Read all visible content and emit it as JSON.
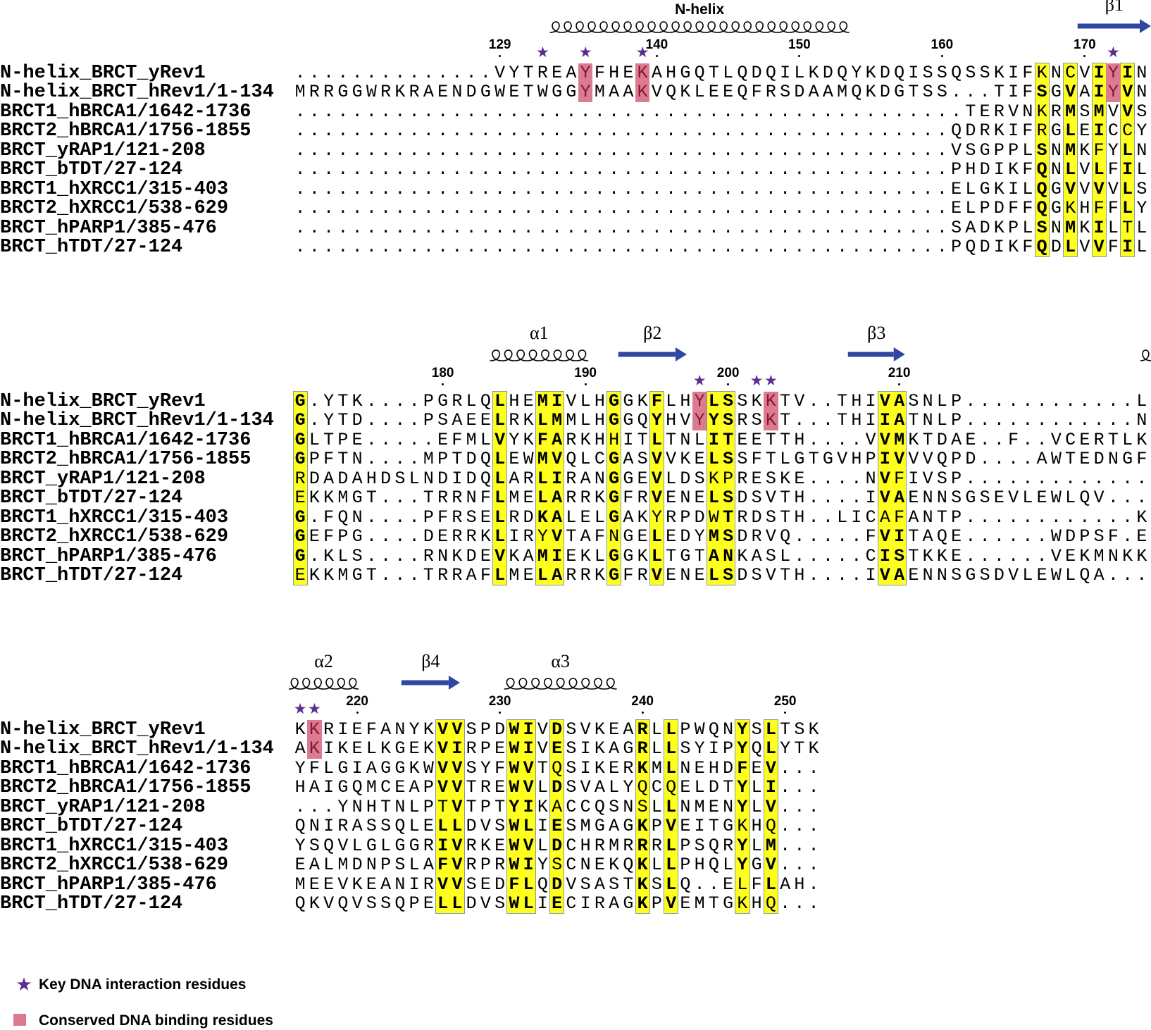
{
  "colors": {
    "conserved_column": "#ffff1e",
    "dna_binding": "#da7b90",
    "dna_binding_text": "#8b1538",
    "key_star": "#5b2d91",
    "strand_arrow": "#2f47a3"
  },
  "names": [
    "N-helix_BRCT_yRev1",
    "N-helix_BRCT_hRev1/1-134",
    "BRCT1_hBRCA1/1642-1736",
    "BRCT2_hBRCA1/1756-1855",
    "BRCT_yRAP1/121-208",
    "BRCT_bTDT/27-124",
    "BRCT1_hXRCC1/315-403",
    "BRCT2_hXRCC1/538-629",
    "BRCT_hPARP1/385-476",
    "BRCT_hTDT/27-124"
  ],
  "blocks": [
    {
      "rows": [
        "..............VYTREAYFHEKAHGQTLQDQILKDQYKDQISSQSSKIFKNCVIYIN",
        "MRRGGWRKRAENDGWETWGGYMAAKVQKLEEQFRSDAAMQKDGTSS...TIFSGVAIYVN",
        "...............................................TERVNKRMSMVVS",
        "..............................................QDRKIFRGLEICCY",
        "..............................................VSGPPLSNMKFYLN",
        "..............................................PHDIKFQNLVLFIL",
        "..............................................ELGKILQGVVVVLS",
        "..............................................ELPDFFQGKHFFLY",
        "..............................................SADKPLSNMKILTL",
        "..............................................PQDIKFQDLVVFIL"
      ],
      "conserved_columns": [
        53,
        55,
        57,
        59
      ],
      "plain_in_conserved": [
        [
          0,
          53
        ],
        [
          0,
          55
        ],
        [
          2,
          53
        ],
        [
          3,
          53
        ],
        [
          3,
          59
        ],
        [
          4,
          57
        ],
        [
          7,
          55
        ],
        [
          7,
          57
        ],
        [
          8,
          59
        ]
      ],
      "dna_binding": [
        {
          "col": 21,
          "rows": [
            0,
            1
          ]
        },
        {
          "col": 25,
          "rows": [
            0,
            1
          ]
        },
        {
          "col": 58,
          "rows": [
            0,
            1
          ]
        }
      ],
      "key_residue_cols": [
        18,
        21,
        25,
        58
      ],
      "ticks": [
        {
          "label": "129",
          "col": 15
        },
        {
          "label": "140",
          "col": 26
        },
        {
          "label": "150",
          "col": 36
        },
        {
          "label": "160",
          "col": 46
        },
        {
          "label": "170",
          "col": 56
        }
      ],
      "secondary_structure": [
        {
          "type": "helix",
          "label": "N-helix",
          "start": 19,
          "end": 40
        },
        {
          "type": "strand",
          "label": "β1",
          "start": 56,
          "end": 61.2
        }
      ]
    },
    {
      "rows": [
        "G.YTK....PGRLQLHEMIVLHGGKFLHYLSSKKTV..THIVASNLP............L",
        "G.YTD....PSAEELRKLMMLHGGQYHVYYSRSKT...THIIATNLP............N",
        "GLTPE.....EFMLVYKFARKHHITLTNLITEETTH....VVMKTDAE..F..VCERTLK",
        "GPFTN....MPTDQLEWMVQLCGASVVKELSSFTLGTGVHPIVVVQPD....AWTEDNGF",
        "RDADAHDSLNDIDQLARLIRANGGEVLDSKPRESKE....NVFIVSP.............",
        "EKKMGT...TRRNFLMELARRKGFRVENELSDSVTH....IVAENNSGSEVLEWLQV...",
        "G.FQN....PFRSELRDKALELGAKYRPDWTRDSTH..LICAFANTP............K",
        "GEFPG....DERRKLIRYVTAFNGELEDYMSDRVQ.....FVITAQE......WDPSF.E",
        "G.KLS....RNKDEVKAMIEKLGGKLTGTANKASL.....CISTKKE......VEKMNKK",
        "EKKMGT...TRRAFLMELARRKGFRVENELSDSVTH....IVAENNSGSDVLEWLQA..."
      ],
      "conserved_columns": [
        1,
        15,
        18,
        19,
        23,
        26,
        30,
        31,
        42,
        43
      ],
      "plain_in_conserved": [
        [
          2,
          23
        ],
        [
          4,
          1
        ],
        [
          5,
          1
        ],
        [
          9,
          1
        ],
        [
          4,
          30
        ],
        [
          4,
          31
        ],
        [
          6,
          26
        ],
        [
          6,
          30
        ],
        [
          7,
          18
        ],
        [
          7,
          23
        ],
        [
          4,
          43
        ],
        [
          6,
          42
        ],
        [
          6,
          43
        ]
      ],
      "dna_binding": [
        {
          "col": 29,
          "rows": [
            0,
            1
          ]
        },
        {
          "col": 34,
          "rows": [
            0,
            1
          ]
        }
      ],
      "key_residue_cols": [
        29,
        33,
        34
      ],
      "ticks": [
        {
          "label": "180",
          "col": 11
        },
        {
          "label": "190",
          "col": 21
        },
        {
          "label": "200",
          "col": 31
        },
        {
          "label": "210",
          "col": 43
        }
      ],
      "secondary_structure": [
        {
          "type": "helix",
          "label": "α1",
          "start": 14.8,
          "end": 21.7
        },
        {
          "type": "strand",
          "label": "β2",
          "start": 23.8,
          "end": 28.6
        },
        {
          "type": "strand",
          "label": "β3",
          "start": 39.9,
          "end": 43.9
        },
        {
          "type": "helix",
          "label": "",
          "start": 60.4,
          "end": 61.4
        }
      ]
    },
    {
      "rows": [
        "KKRIEFANYKVVSPDWIVDSVKEARLLPWQNYSLTSK",
        "AKIKELKGEKVIRPEWIVESIKAGRLLSYIPYQLYTK",
        "YFLGIAGGKWVVSYFWVTQSIKERKMLNEHDFEV...",
        "HAIGQMCEAPVVTREWVLDSVALYQCQELDTYLI...",
        "...YNHTNLPTVTPTYIKACCQSNSLLNMENYLV...",
        "QNIRASSQLELLDVSWLIESMGAGKPVEITGKHQ...",
        "YSQVLGLGGRIVRKEWVLDCHRMRRRLPSQRYLM...",
        "EALMDNPSLAFVRPRWIYSCNEKQKLLPHQLYGV...",
        "MEEVKEANIRVVSEDFLQDVSASTKSLQ..ELFLAH.",
        "QKVQVSSQPELLDVSWLIECIRAGKPVEMTGKHQ..."
      ],
      "conserved_columns": [
        11,
        12,
        16,
        17,
        19,
        25,
        27,
        32,
        34
      ],
      "plain_in_conserved": [
        [
          2,
          19
        ],
        [
          3,
          25
        ],
        [
          3,
          27
        ],
        [
          4,
          11
        ],
        [
          4,
          19
        ],
        [
          4,
          25
        ],
        [
          5,
          32
        ],
        [
          5,
          34
        ],
        [
          7,
          19
        ],
        [
          9,
          32
        ],
        [
          9,
          34
        ],
        [
          8,
          32
        ]
      ],
      "dna_binding": [
        {
          "col": 2,
          "rows": [
            0,
            1
          ]
        }
      ],
      "key_residue_cols": [
        1,
        2
      ],
      "ticks": [
        {
          "label": "220",
          "col": 5
        },
        {
          "label": "230",
          "col": 15
        },
        {
          "label": "240",
          "col": 25
        },
        {
          "label": "250",
          "col": 35
        }
      ],
      "secondary_structure": [
        {
          "type": "helix",
          "label": "α2",
          "start": 0.7,
          "end": 5.6
        },
        {
          "type": "strand",
          "label": "β4",
          "start": 8.6,
          "end": 12.7
        },
        {
          "type": "helix",
          "label": "α3",
          "start": 15.8,
          "end": 23.7
        }
      ]
    }
  ],
  "legend": {
    "star": {
      "icon": "star-icon",
      "label": "Key DNA interaction residues"
    },
    "box": {
      "icon": "pink-square-icon",
      "label": "Conserved DNA binding residues"
    }
  }
}
